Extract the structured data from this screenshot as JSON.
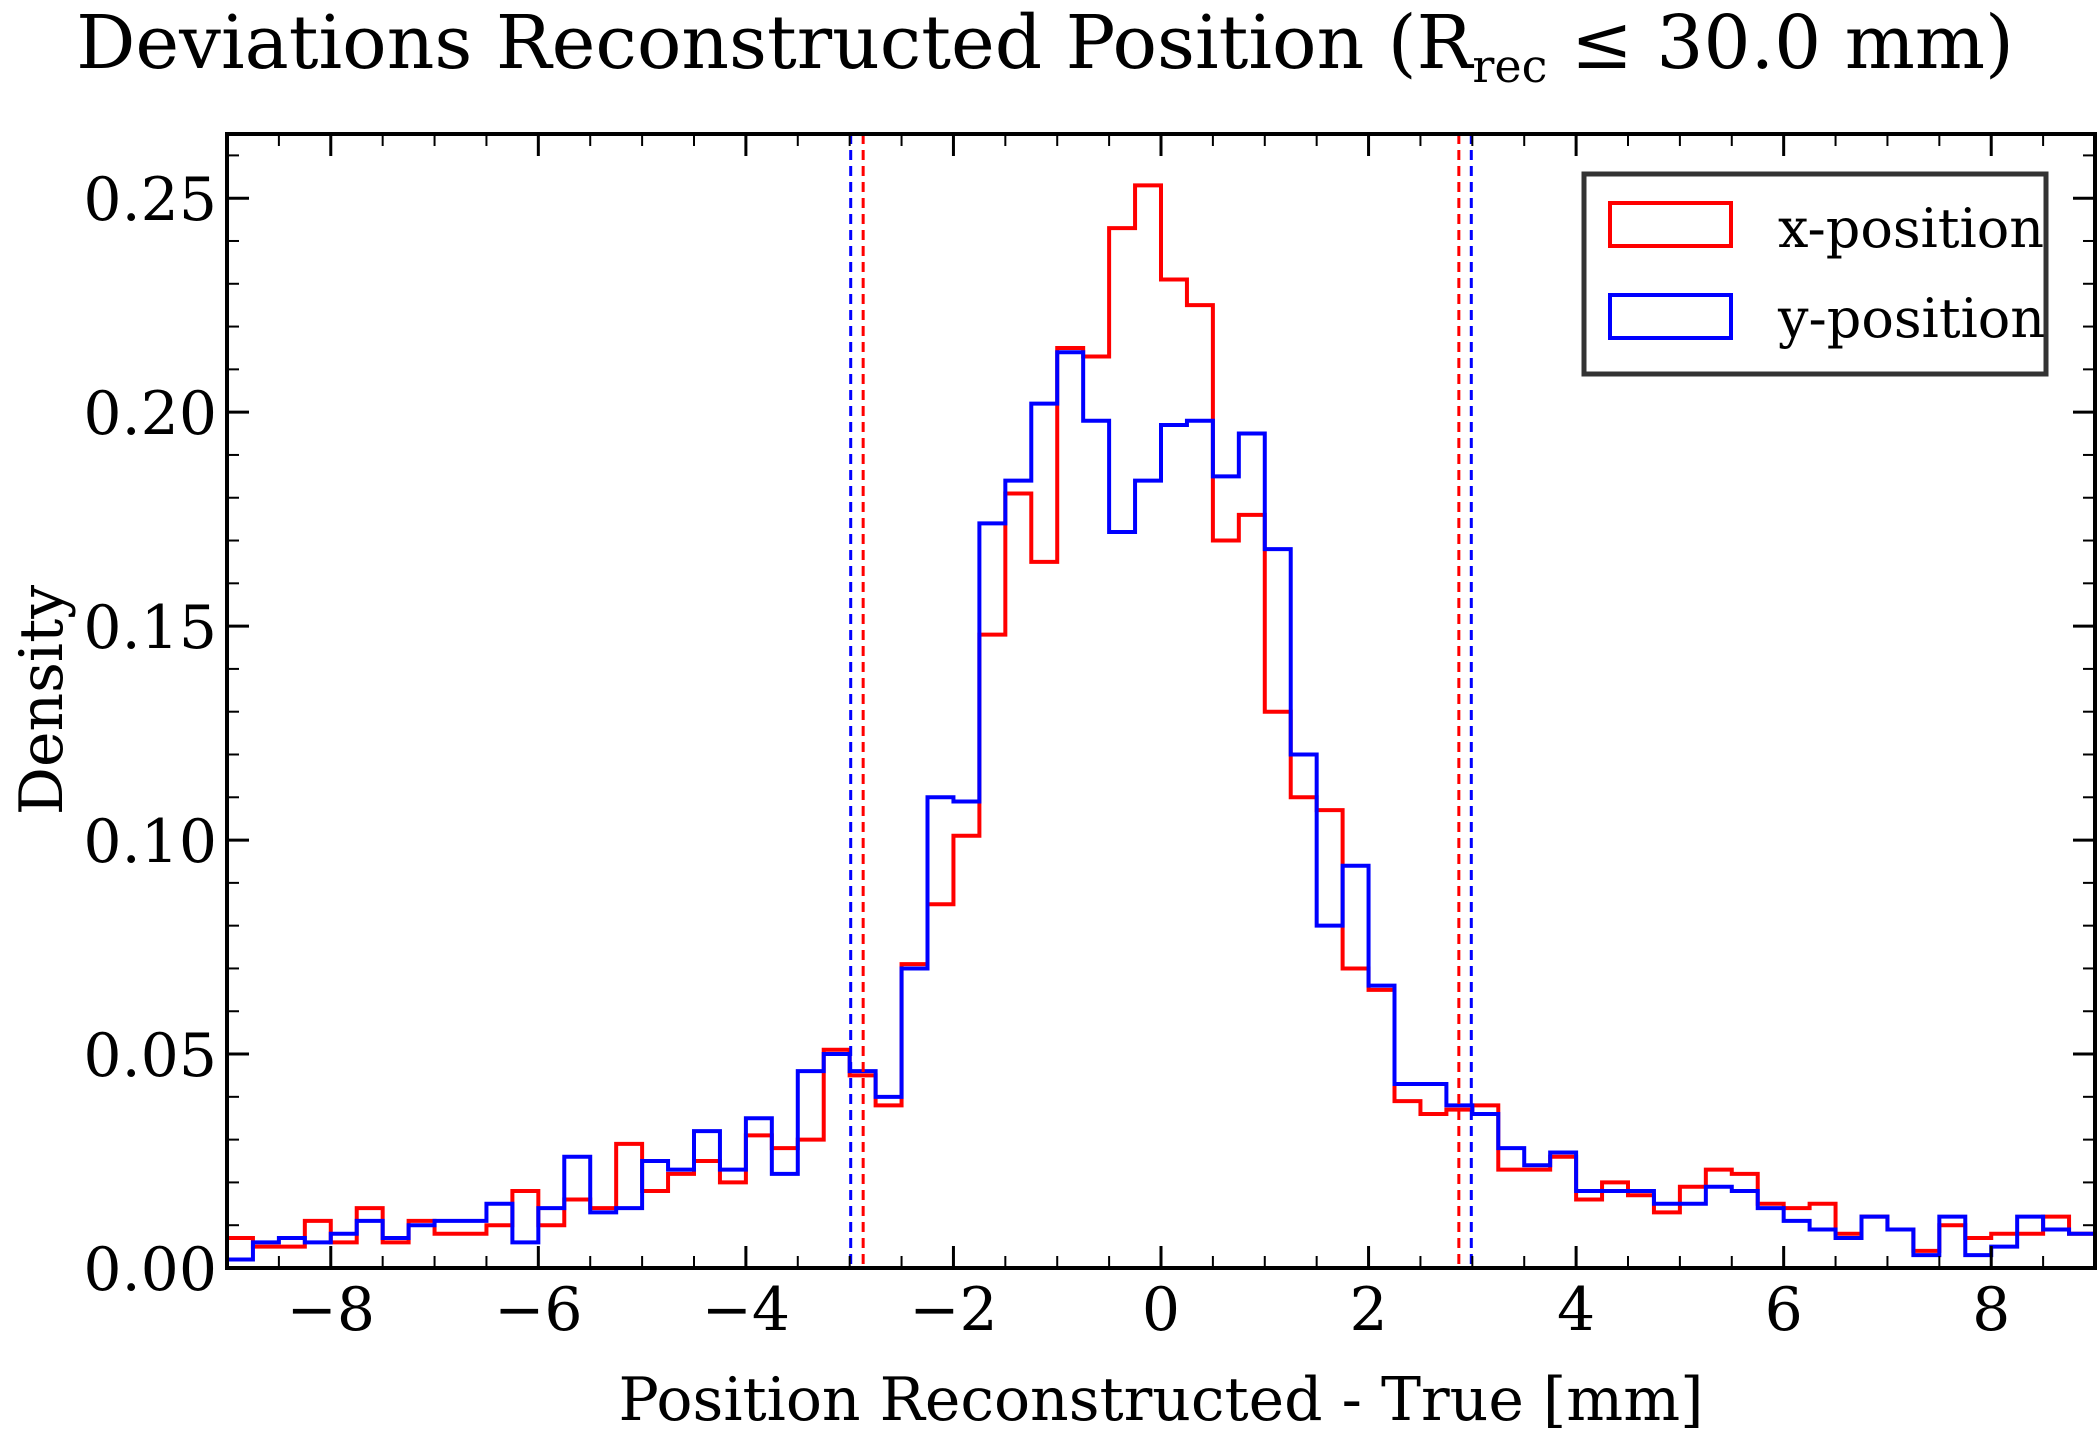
{
  "chart_data": {
    "type": "histogram",
    "title_main": "Deviations Reconstructed Position (R",
    "title_sub": "rec",
    "title_rest": " ≤ 30.0 mm)",
    "xlabel": "Position Reconstructed - True [mm]",
    "ylabel": "Density",
    "xlim": [
      -9,
      9
    ],
    "ylim": [
      0,
      0.265
    ],
    "xticks": [
      -8,
      -6,
      -4,
      -2,
      0,
      2,
      4,
      6,
      8
    ],
    "xtick_labels": [
      "−8",
      "−6",
      "−4",
      "−2",
      "0",
      "2",
      "4",
      "6",
      "8"
    ],
    "yticks": [
      0.0,
      0.05,
      0.1,
      0.15,
      0.2,
      0.25
    ],
    "ytick_labels": [
      "0.00",
      "0.05",
      "0.10",
      "0.15",
      "0.20",
      "0.25"
    ],
    "grid": false,
    "legend_position": "top-right",
    "bin_edges_start": -9,
    "bin_width": 0.25,
    "series": [
      {
        "name": "x-position",
        "color": "#ff0000",
        "values": [
          0.007,
          0.005,
          0.005,
          0.011,
          0.006,
          0.014,
          0.006,
          0.011,
          0.008,
          0.008,
          0.01,
          0.018,
          0.01,
          0.016,
          0.014,
          0.029,
          0.018,
          0.022,
          0.025,
          0.02,
          0.031,
          0.028,
          0.03,
          0.051,
          0.045,
          0.038,
          0.071,
          0.085,
          0.101,
          0.148,
          0.181,
          0.165,
          0.215,
          0.213,
          0.243,
          0.253,
          0.231,
          0.225,
          0.17,
          0.176,
          0.13,
          0.11,
          0.107,
          0.07,
          0.065,
          0.039,
          0.036,
          0.037,
          0.038,
          0.023,
          0.023,
          0.026,
          0.016,
          0.02,
          0.017,
          0.013,
          0.019,
          0.023,
          0.022,
          0.015,
          0.014,
          0.015,
          0.008,
          0.012,
          0.009,
          0.004,
          0.01,
          0.007,
          0.008,
          0.008,
          0.012,
          0.008
        ]
      },
      {
        "name": "y-position",
        "color": "#0000ff",
        "values": [
          0.002,
          0.006,
          0.007,
          0.006,
          0.008,
          0.011,
          0.007,
          0.01,
          0.011,
          0.011,
          0.015,
          0.006,
          0.014,
          0.026,
          0.013,
          0.014,
          0.025,
          0.023,
          0.032,
          0.023,
          0.035,
          0.022,
          0.046,
          0.05,
          0.046,
          0.04,
          0.07,
          0.11,
          0.109,
          0.174,
          0.184,
          0.202,
          0.214,
          0.198,
          0.172,
          0.184,
          0.197,
          0.198,
          0.185,
          0.195,
          0.168,
          0.12,
          0.08,
          0.094,
          0.066,
          0.043,
          0.043,
          0.038,
          0.036,
          0.028,
          0.024,
          0.027,
          0.018,
          0.018,
          0.018,
          0.015,
          0.015,
          0.019,
          0.018,
          0.014,
          0.011,
          0.009,
          0.007,
          0.012,
          0.009,
          0.003,
          0.012,
          0.003,
          0.005,
          0.012,
          0.009,
          0.008
        ]
      }
    ],
    "vertical_lines": [
      {
        "x": -2.87,
        "color": "#ff0000",
        "series": "x-position"
      },
      {
        "x": 2.87,
        "color": "#ff0000",
        "series": "x-position"
      },
      {
        "x": -2.99,
        "color": "#0000ff",
        "series": "y-position"
      },
      {
        "x": 2.99,
        "color": "#0000ff",
        "series": "y-position"
      }
    ]
  }
}
